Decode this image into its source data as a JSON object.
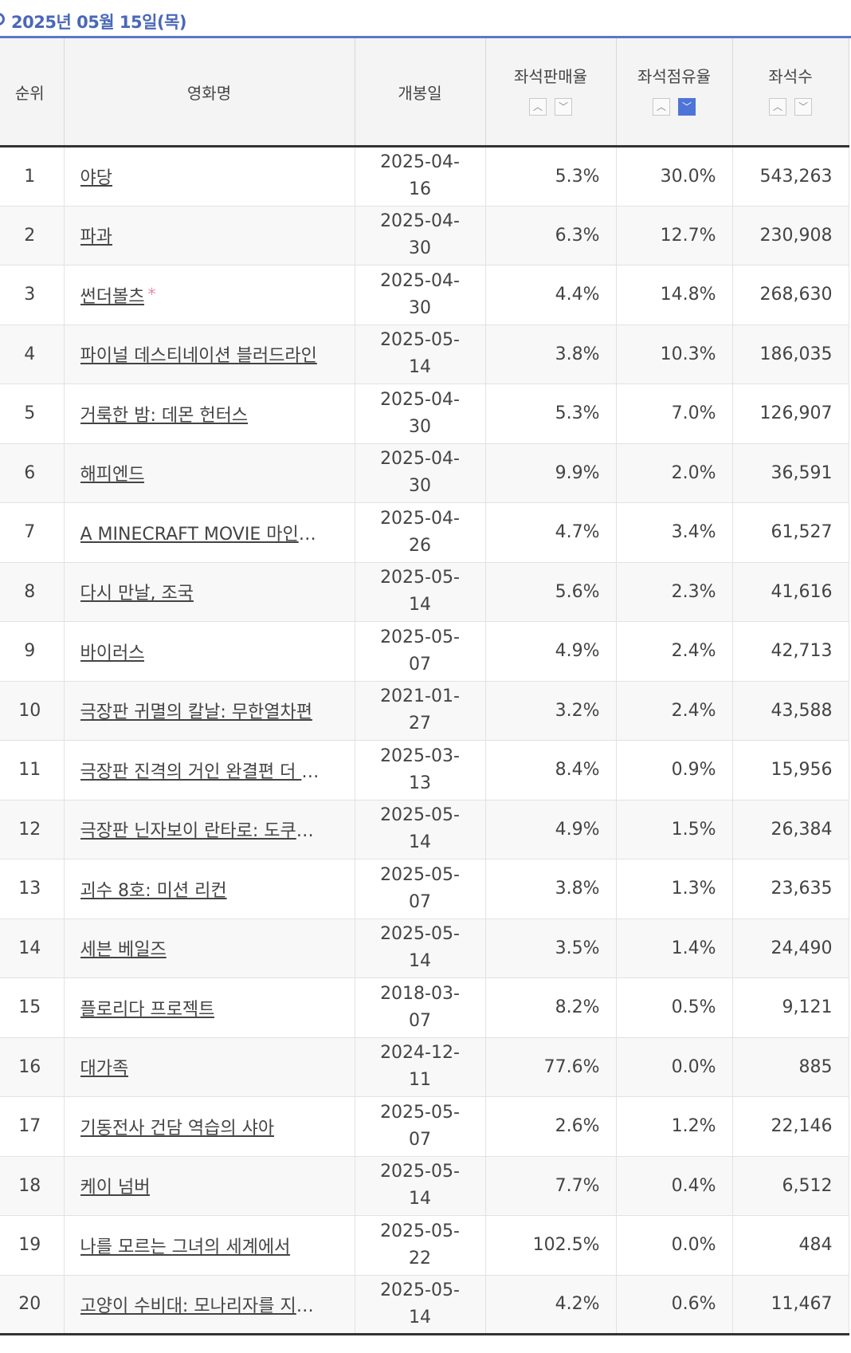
{
  "header": {
    "date": "2025년 05월 15일(목)"
  },
  "table": {
    "columns": {
      "rank": "순위",
      "title": "영화명",
      "open_date": "개봉일",
      "seat_sales_rate": "좌석판매율",
      "seat_share": "좌석점유율",
      "seats": "좌석수"
    },
    "sort_up_icon": "chevron-up-icon",
    "sort_down_icon": "chevron-down-icon",
    "active_sort": "seat_share_desc",
    "accent_color": "#4f74d8",
    "rows": [
      {
        "rank": "1",
        "title": "야당",
        "star": "",
        "open": "2025-04-16",
        "sales": "5.3%",
        "share": "30.0%",
        "seats": "543,263"
      },
      {
        "rank": "2",
        "title": "파과",
        "star": "",
        "open": "2025-04-30",
        "sales": "6.3%",
        "share": "12.7%",
        "seats": "230,908"
      },
      {
        "rank": "3",
        "title": "썬더볼츠",
        "star": "*",
        "open": "2025-04-30",
        "sales": "4.4%",
        "share": "14.8%",
        "seats": "268,630"
      },
      {
        "rank": "4",
        "title": "파이널 데스티네이션 블러드라인",
        "star": "",
        "open": "2025-05-14",
        "sales": "3.8%",
        "share": "10.3%",
        "seats": "186,035"
      },
      {
        "rank": "5",
        "title": "거룩한 밤: 데몬 헌터스",
        "star": "",
        "open": "2025-04-30",
        "sales": "5.3%",
        "share": "7.0%",
        "seats": "126,907"
      },
      {
        "rank": "6",
        "title": "해피엔드",
        "star": "",
        "open": "2025-04-30",
        "sales": "9.9%",
        "share": "2.0%",
        "seats": "36,591"
      },
      {
        "rank": "7",
        "title": "A MINECRAFT MOVIE 마인크…",
        "star": "",
        "open": "2025-04-26",
        "sales": "4.7%",
        "share": "3.4%",
        "seats": "61,527"
      },
      {
        "rank": "8",
        "title": "다시 만날, 조국",
        "star": "",
        "open": "2025-05-14",
        "sales": "5.6%",
        "share": "2.3%",
        "seats": "41,616"
      },
      {
        "rank": "9",
        "title": "바이러스",
        "star": "",
        "open": "2025-05-07",
        "sales": "4.9%",
        "share": "2.4%",
        "seats": "42,713"
      },
      {
        "rank": "10",
        "title": "극장판 귀멸의 칼날: 무한열차편",
        "star": "",
        "open": "2021-01-27",
        "sales": "3.2%",
        "share": "2.4%",
        "seats": "43,588"
      },
      {
        "rank": "11",
        "title": "극장판 진격의 거인 완결편 더 라스…",
        "star": "",
        "open": "2025-03-13",
        "sales": "8.4%",
        "share": "0.9%",
        "seats": "15,956"
      },
      {
        "rank": "12",
        "title": "극장판 닌자보이 란타로: 도쿠타케…",
        "star": "",
        "open": "2025-05-14",
        "sales": "4.9%",
        "share": "1.5%",
        "seats": "26,384"
      },
      {
        "rank": "13",
        "title": "괴수 8호: 미션 리컨",
        "star": "",
        "open": "2025-05-07",
        "sales": "3.8%",
        "share": "1.3%",
        "seats": "23,635"
      },
      {
        "rank": "14",
        "title": "세븐 베일즈",
        "star": "",
        "open": "2025-05-14",
        "sales": "3.5%",
        "share": "1.4%",
        "seats": "24,490"
      },
      {
        "rank": "15",
        "title": "플로리다 프로젝트",
        "star": "",
        "open": "2018-03-07",
        "sales": "8.2%",
        "share": "0.5%",
        "seats": "9,121"
      },
      {
        "rank": "16",
        "title": "대가족",
        "star": "",
        "open": "2024-12-11",
        "sales": "77.6%",
        "share": "0.0%",
        "seats": "885"
      },
      {
        "rank": "17",
        "title": "기동전사 건담 역습의 샤아",
        "star": "",
        "open": "2025-05-07",
        "sales": "2.6%",
        "share": "1.2%",
        "seats": "22,146"
      },
      {
        "rank": "18",
        "title": "케이 넘버",
        "star": "",
        "open": "2025-05-14",
        "sales": "7.7%",
        "share": "0.4%",
        "seats": "6,512"
      },
      {
        "rank": "19",
        "title": "나를 모르는 그녀의 세계에서",
        "star": "",
        "open": "2025-05-22",
        "sales": "102.5%",
        "share": "0.0%",
        "seats": "484"
      },
      {
        "rank": "20",
        "title": "고양이 수비대: 모나리자를 지켜라!",
        "star": "",
        "open": "2025-05-14",
        "sales": "4.2%",
        "share": "0.6%",
        "seats": "11,467"
      }
    ]
  }
}
